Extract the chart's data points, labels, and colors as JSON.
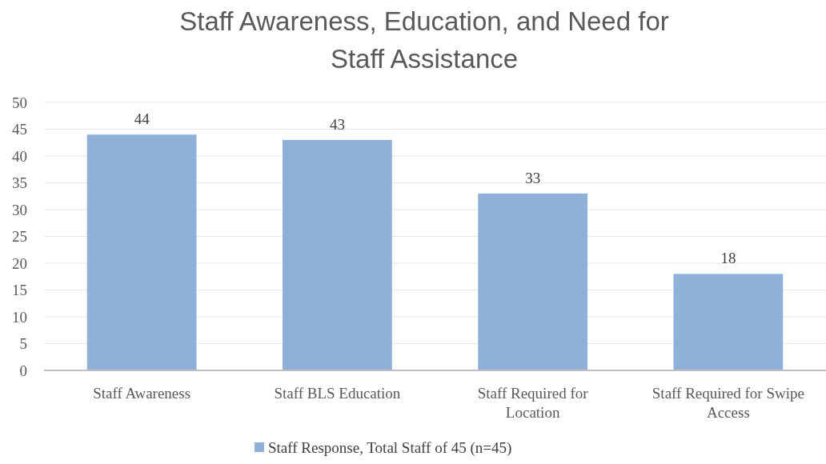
{
  "chart_data": {
    "type": "bar",
    "title": "Staff Awareness, Education, and Need for Staff Assistance",
    "categories": [
      "Staff Awareness",
      "Staff BLS Education",
      "Staff Required for Location",
      "Staff Required for Swipe Access"
    ],
    "series": [
      {
        "name": "Staff Response, Total Staff of 45 (n=45)",
        "color": "#8eb0d9",
        "values": [
          44,
          43,
          33,
          18
        ]
      }
    ],
    "ylim": [
      0,
      50
    ],
    "yticks": [
      0,
      5,
      10,
      15,
      20,
      25,
      30,
      35,
      40,
      45,
      50
    ],
    "grid": "y",
    "legend": "bottom",
    "data_labels": true
  }
}
